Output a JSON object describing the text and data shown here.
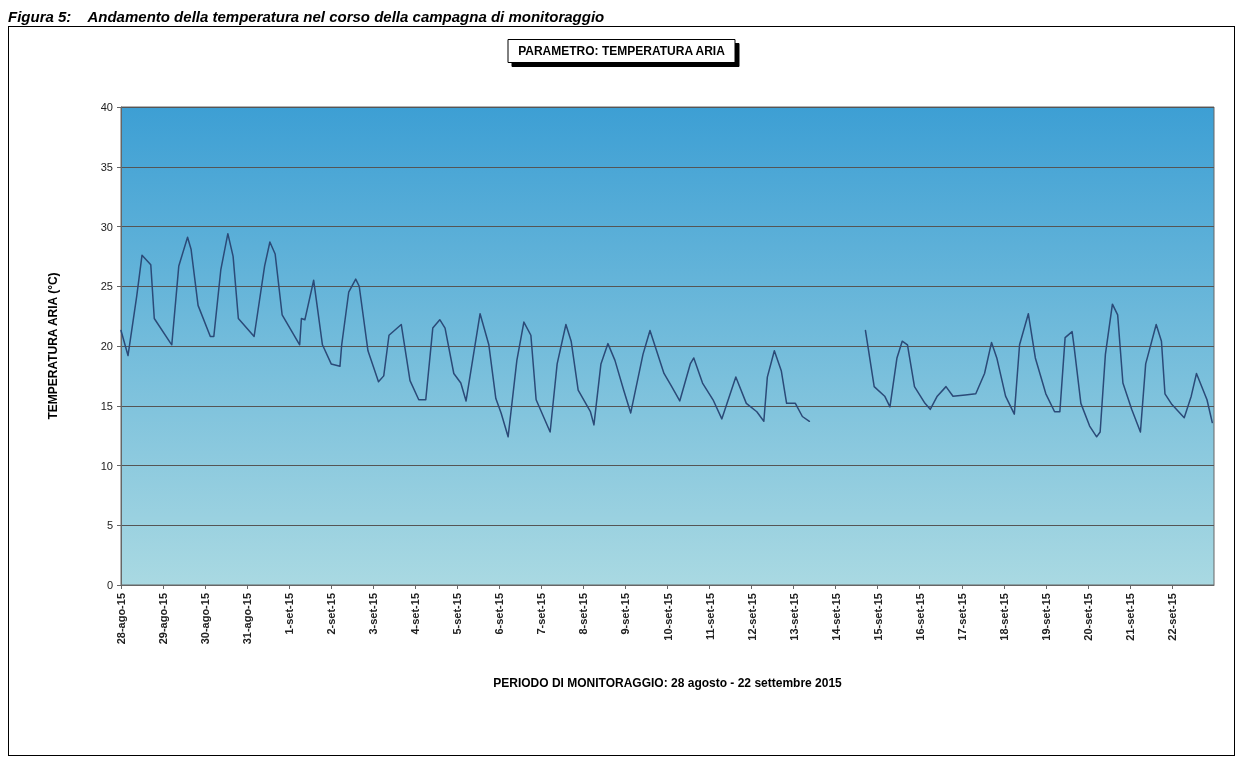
{
  "chart_data": {
    "type": "line",
    "title": "PARAMETRO: TEMPERATURA ARIA",
    "subtitle": "Figura 5:    Andamento della temperatura nel corso della campagna di monitoraggio",
    "xlabel": "PERIODO DI MONITORAGGIO: 28 agosto - 22 settembre 2015",
    "ylabel": "TEMPERATURA ARIA (°C)",
    "xlim": [
      "2015-08-28",
      "2015-09-23"
    ],
    "xticks": [
      {
        "value": "2015-08-28",
        "label": "28-ago-15"
      },
      {
        "value": "2015-08-29",
        "label": "29-ago-15"
      },
      {
        "value": "2015-08-30",
        "label": "30-ago-15"
      },
      {
        "value": "2015-08-31",
        "label": "31-ago-15"
      },
      {
        "value": "2015-09-01",
        "label": "1-set-15"
      },
      {
        "value": "2015-09-02",
        "label": "2-set-15"
      },
      {
        "value": "2015-09-03",
        "label": "3-set-15"
      },
      {
        "value": "2015-09-04",
        "label": "4-set-15"
      },
      {
        "value": "2015-09-05",
        "label": "5-set-15"
      },
      {
        "value": "2015-09-06",
        "label": "6-set-15"
      },
      {
        "value": "2015-09-07",
        "label": "7-set-15"
      },
      {
        "value": "2015-09-08",
        "label": "8-set-15"
      },
      {
        "value": "2015-09-09",
        "label": "9-set-15"
      },
      {
        "value": "2015-09-10",
        "label": "10-set-15"
      },
      {
        "value": "2015-09-11",
        "label": "11-set-15"
      },
      {
        "value": "2015-09-12",
        "label": "12-set-15"
      },
      {
        "value": "2015-09-13",
        "label": "13-set-15"
      },
      {
        "value": "2015-09-14",
        "label": "14-set-15"
      },
      {
        "value": "2015-09-15",
        "label": "15-set-15"
      },
      {
        "value": "2015-09-16",
        "label": "16-set-15"
      },
      {
        "value": "2015-09-17",
        "label": "17-set-15"
      },
      {
        "value": "2015-09-18",
        "label": "18-set-15"
      },
      {
        "value": "2015-09-19",
        "label": "19-set-15"
      },
      {
        "value": "2015-09-20",
        "label": "20-set-15"
      },
      {
        "value": "2015-09-21",
        "label": "21-set-15"
      },
      {
        "value": "2015-09-22",
        "label": "22-set-15"
      }
    ],
    "ylim": [
      0,
      40
    ],
    "yticks": [
      0,
      5,
      10,
      15,
      20,
      25,
      30,
      35,
      40
    ],
    "grid": "y",
    "marker": "none",
    "line_style": "solid",
    "series": [
      {
        "color": "#2b4a78",
        "x": [
          "2015-08-28T00:00",
          "2015-08-28T04:00",
          "2015-08-28T09:00",
          "2015-08-28T12:00",
          "2015-08-28T17:00",
          "2015-08-28T19:00",
          "2015-08-29T04:00",
          "2015-08-29T05:00",
          "2015-08-29T09:00",
          "2015-08-29T14:00",
          "2015-08-29T16:00",
          "2015-08-29T20:00",
          "2015-08-30T03:00",
          "2015-08-30T05:00",
          "2015-08-30T09:00",
          "2015-08-30T13:00",
          "2015-08-30T16:00",
          "2015-08-30T19:00",
          "2015-08-31T04:00",
          "2015-08-31T10:00",
          "2015-08-31T13:00",
          "2015-08-31T16:00",
          "2015-08-31T20:00",
          "2015-09-01T02:00",
          "2015-09-01T06:00",
          "2015-09-01T07:00",
          "2015-09-01T09:00",
          "2015-09-01T14:00",
          "2015-09-01T19:00",
          "2015-09-02T00:00",
          "2015-09-02T05:00",
          "2015-09-02T06:00",
          "2015-09-02T10:00",
          "2015-09-02T14:00",
          "2015-09-02T16:00",
          "2015-09-02T21:00",
          "2015-09-03T03:00",
          "2015-09-03T06:00",
          "2015-09-03T09:00",
          "2015-09-03T16:00",
          "2015-09-03T21:00",
          "2015-09-04T02:00",
          "2015-09-04T06:00",
          "2015-09-04T10:00",
          "2015-09-04T14:00",
          "2015-09-04T17:00",
          "2015-09-04T22:00",
          "2015-09-05T02:00",
          "2015-09-05T05:00",
          "2015-09-05T13:00",
          "2015-09-05T18:00",
          "2015-09-05T22:00",
          "2015-09-06T01:00",
          "2015-09-06T05:00",
          "2015-09-06T10:00",
          "2015-09-06T14:00",
          "2015-09-06T18:00",
          "2015-09-06T21:00",
          "2015-09-07T05:00",
          "2015-09-07T09:00",
          "2015-09-07T14:00",
          "2015-09-07T17:00",
          "2015-09-07T21:00",
          "2015-09-08T04:00",
          "2015-09-08T06:00",
          "2015-09-08T10:00",
          "2015-09-08T14:00",
          "2015-09-08T18:00",
          "2015-09-08T23:00",
          "2015-09-09T03:00",
          "2015-09-09T10:00",
          "2015-09-09T14:00",
          "2015-09-09T22:00",
          "2015-09-10T02:00",
          "2015-09-10T07:00",
          "2015-09-10T13:00",
          "2015-09-10T15:00",
          "2015-09-10T20:00",
          "2015-09-11T02:00",
          "2015-09-11T07:00",
          "2015-09-11T10:00",
          "2015-09-11T15:00",
          "2015-09-11T21:00",
          "2015-09-12T03:00",
          "2015-09-12T07:00",
          "2015-09-12T09:00",
          "2015-09-12T13:00",
          "2015-09-12T17:00",
          "2015-09-12T20:00",
          "2015-09-13T01:00",
          "2015-09-13T05:00",
          "2015-09-13T09:00",
          "2015-09-14T02:00",
          "2015-09-14T17:00",
          "2015-09-14T22:00",
          "2015-09-15T04:00",
          "2015-09-15T07:00",
          "2015-09-15T11:00",
          "2015-09-15T14:00",
          "2015-09-15T17:00",
          "2015-09-15T21:00",
          "2015-09-16T03:00",
          "2015-09-16T06:00",
          "2015-09-16T10:00",
          "2015-09-16T15:00",
          "2015-09-16T19:00",
          "2015-09-17T02:00",
          "2015-09-17T08:00",
          "2015-09-17T13:00",
          "2015-09-17T17:00",
          "2015-09-17T20:00",
          "2015-09-18T01:00",
          "2015-09-18T06:00",
          "2015-09-18T09:00",
          "2015-09-18T14:00",
          "2015-09-18T18:00",
          "2015-09-19T00:00",
          "2015-09-19T05:00",
          "2015-09-19T08:00",
          "2015-09-19T11:00",
          "2015-09-19T15:00",
          "2015-09-19T16:00",
          "2015-09-19T20:00",
          "2015-09-20T01:00",
          "2015-09-20T05:00",
          "2015-09-20T07:00",
          "2015-09-20T10:00",
          "2015-09-20T14:00",
          "2015-09-20T17:00",
          "2015-09-20T20:00",
          "2015-09-21T01:00",
          "2015-09-21T06:00",
          "2015-09-21T09:00",
          "2015-09-21T15:00",
          "2015-09-21T18:00",
          "2015-09-21T20:00",
          "2015-09-22T00:00",
          "2015-09-22T07:00",
          "2015-09-22T11:00",
          "2015-09-22T14:00",
          "2015-09-22T20:00",
          "2015-09-22T23:00"
        ],
        "values": [
          21.3,
          19.2,
          24.2,
          27.6,
          26.8,
          22.3,
          20.3,
          20.1,
          26.7,
          29.1,
          28.1,
          23.4,
          20.8,
          20.8,
          26.4,
          29.4,
          27.5,
          22.3,
          20.8,
          26.7,
          28.7,
          27.7,
          22.6,
          21.1,
          20.1,
          22.3,
          22.2,
          25.5,
          20.1,
          18.5,
          18.3,
          20.1,
          24.5,
          25.6,
          25.0,
          19.6,
          17.0,
          17.5,
          20.9,
          21.8,
          17.1,
          15.5,
          15.5,
          21.5,
          22.2,
          21.5,
          17.7,
          16.9,
          15.4,
          22.7,
          20.1,
          15.6,
          14.4,
          12.4,
          18.8,
          22.0,
          20.9,
          15.5,
          12.8,
          18.5,
          21.8,
          20.4,
          16.3,
          14.5,
          13.4,
          18.5,
          20.2,
          18.8,
          16.3,
          14.4,
          19.3,
          21.3,
          17.7,
          16.7,
          15.4,
          18.5,
          19.0,
          16.9,
          15.5,
          13.9,
          15.2,
          17.4,
          15.2,
          14.5,
          13.7,
          17.4,
          19.6,
          17.9,
          15.2,
          15.2,
          14.1,
          13.7,
          null,
          21.3,
          16.6,
          15.8,
          14.9,
          19.0,
          20.4,
          20.1,
          16.6,
          15.2,
          14.7,
          15.8,
          16.6,
          15.8,
          15.9,
          16.0,
          17.7,
          20.3,
          19.0,
          15.8,
          14.3,
          20.1,
          22.7,
          19.0,
          16.0,
          14.5,
          14.5,
          20.7,
          21.2,
          20.1,
          15.2,
          13.3,
          12.4,
          12.8,
          19.3,
          23.5,
          22.6,
          16.9,
          14.7,
          12.8,
          18.5,
          21.8,
          20.4,
          16.0,
          15.1,
          14.0,
          15.8,
          17.7,
          15.5,
          13.6
        ]
      }
    ]
  }
}
